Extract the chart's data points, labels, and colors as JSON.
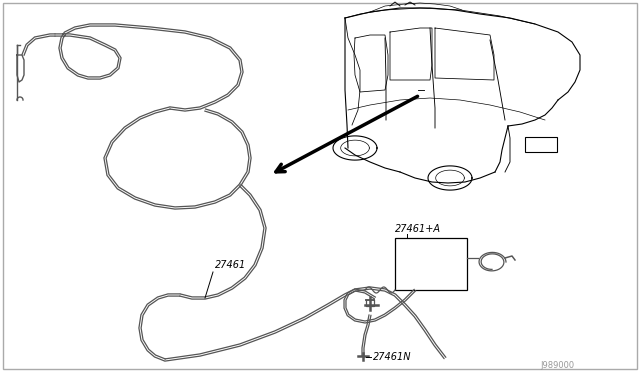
{
  "background_color": "#ffffff",
  "border_color": "#cccccc",
  "line_color": "#000000",
  "text_color": "#000000",
  "label_27461": "27461",
  "label_27461A": "27461+A",
  "label_27461N": "27461N",
  "label_ref": "J989000",
  "fig_width": 6.4,
  "fig_height": 3.72,
  "dpi": 100,
  "hose_color": "#555555",
  "hose_lw": 0.9,
  "car_lw": 0.8,
  "arrow_lw": 2.5
}
